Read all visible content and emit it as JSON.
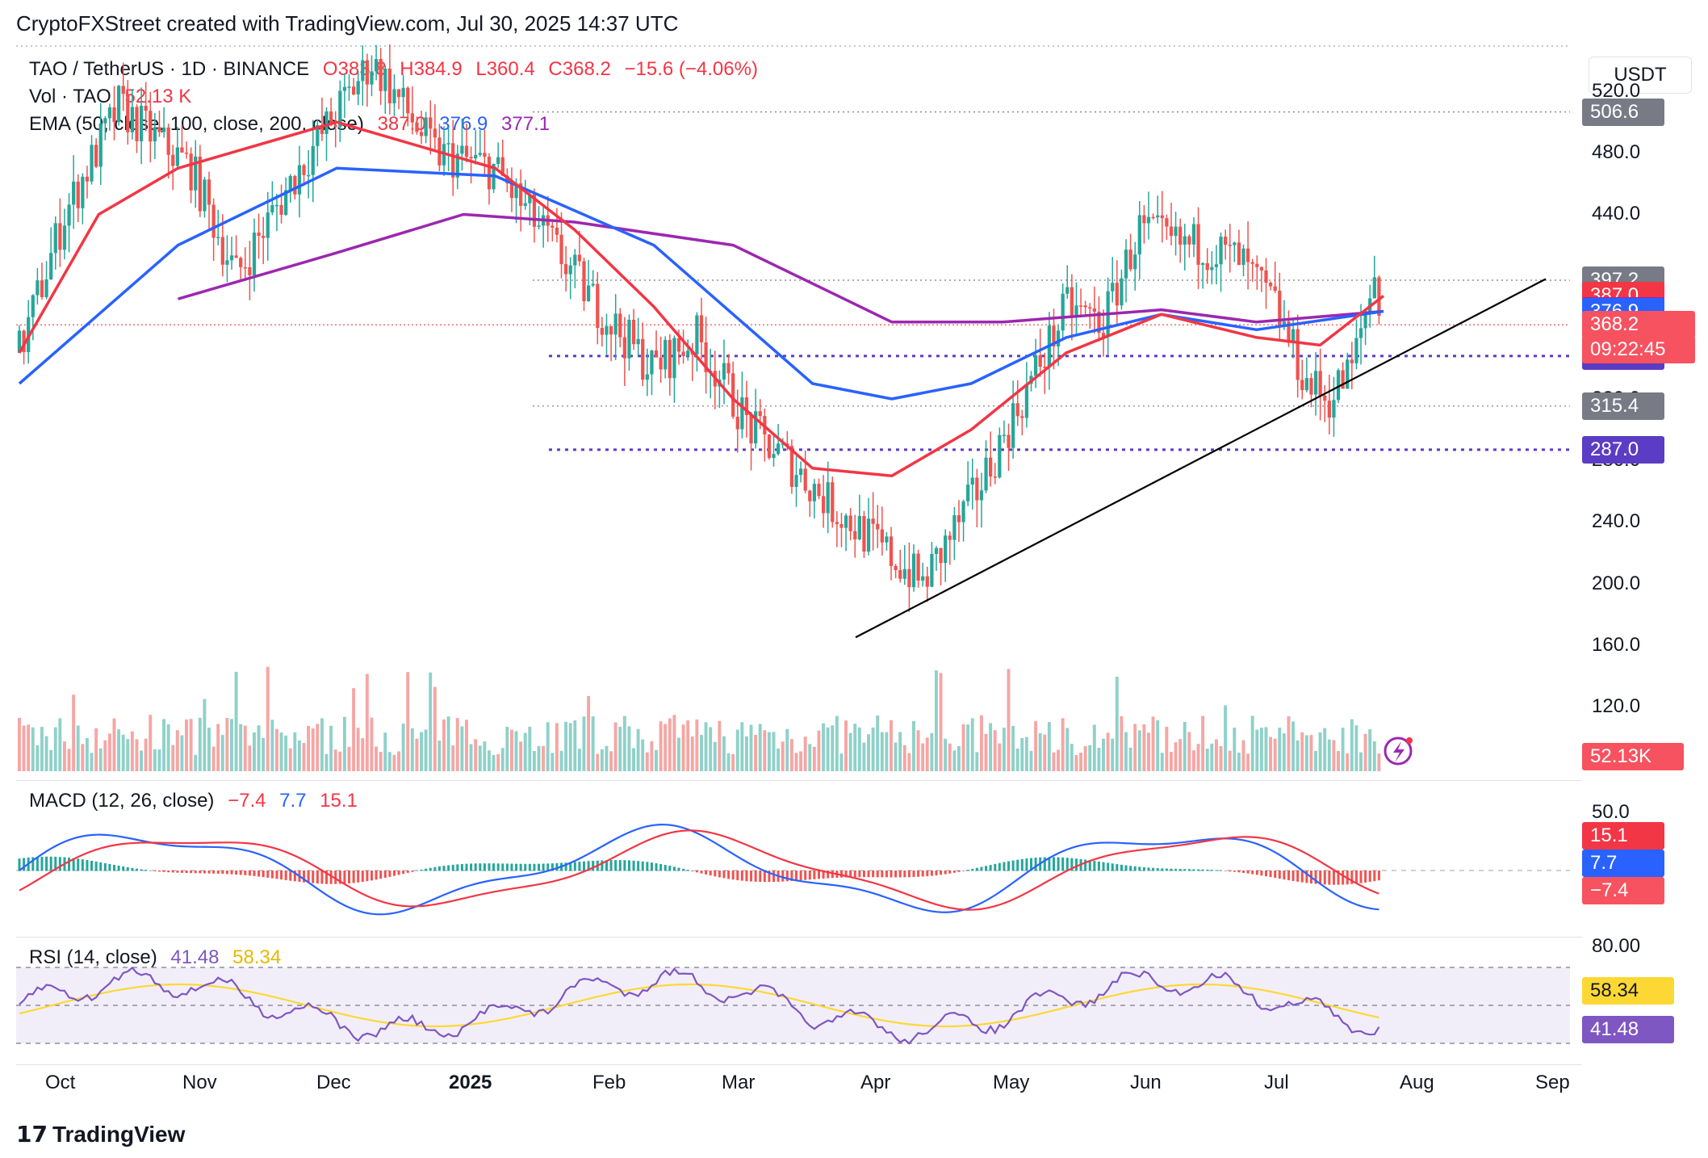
{
  "header": {
    "caption": "CryptoFXStreet created with TradingView.com, Jul 30, 2025 14:37 UTC"
  },
  "currency_button": "USDT",
  "legend": {
    "symbol": "TAO / TetherUS · 1D · BINANCE",
    "open": "O383.8",
    "high": "H384.9",
    "low": "L360.4",
    "close": "C368.2",
    "change": "−15.6 (−4.06%)",
    "vol_label": "Vol · TAO",
    "vol_value": "52.13 K",
    "ema_label": "EMA (50, close, 100, close, 200, close)",
    "ema50": "387.0",
    "ema100": "376.9",
    "ema200": "377.1",
    "macd_label": "MACD (12, 26, close)",
    "macd_hist": "−7.4",
    "macd_line": "7.7",
    "macd_signal": "15.1",
    "rsi_label": "RSI (14, close)",
    "rsi_value": "41.48",
    "rsi_ma": "58.34"
  },
  "price_axis": {
    "ticks": [
      "520.0",
      "480.0",
      "440.0",
      "400.0",
      "360.0",
      "320.0",
      "280.0",
      "240.0",
      "200.0",
      "160.0",
      "120.0"
    ],
    "badges": [
      {
        "label": "506.6",
        "color": "#787b86",
        "price": 506.6
      },
      {
        "label": "397.2",
        "color": "#787b86",
        "price": 397.2
      },
      {
        "label": "387.0",
        "color": "#f23645",
        "price": 387.0
      },
      {
        "label": "377.1",
        "color": "#9c27b0",
        "price": 377.1
      },
      {
        "label": "376.9",
        "color": "#2962ff",
        "price": 376.9
      },
      {
        "label": "368.2",
        "color": "#f7525f",
        "price": 368.2
      },
      {
        "label": "347.9",
        "color": "#5b3cc4",
        "price": 347.9
      },
      {
        "label": "315.4",
        "color": "#787b86",
        "price": 315.4
      },
      {
        "label": "287.0",
        "color": "#5b3cc4",
        "price": 287.0
      }
    ],
    "countdown": "09:22:45",
    "volume_badge": "52.13K"
  },
  "macd_axis": {
    "ticks": [
      "50.0"
    ],
    "badges": [
      {
        "label": "15.1",
        "color": "#f23645"
      },
      {
        "label": "7.7",
        "color": "#2962ff"
      },
      {
        "label": "−7.4",
        "color": "#f7525f"
      }
    ]
  },
  "rsi_axis": {
    "ticks": [
      "80.00"
    ],
    "badges": [
      {
        "label": "58.34",
        "color": "#fdd835",
        "text_color": "#131722"
      },
      {
        "label": "41.48",
        "color": "#7e57c2",
        "text_color": "#ffffff"
      }
    ]
  },
  "time_axis": [
    "Oct",
    "Nov",
    "Dec",
    "2025",
    "Feb",
    "Mar",
    "Apr",
    "May",
    "Jun",
    "Jul",
    "Aug",
    "Sep"
  ],
  "footer": {
    "brand": "TradingView"
  },
  "colors": {
    "up": "#26a69a",
    "down": "#ef5350",
    "ema50": "#f23645",
    "ema100": "#2962ff",
    "ema200": "#9c27b0",
    "rsi": "#7e57c2",
    "rsi_ma": "#fdd835",
    "level": "#5b3cc4"
  },
  "chart_data": {
    "type": "line",
    "ylim": [
      120,
      540
    ],
    "series": [
      {
        "name": "EMA 50",
        "values": [
          [
            0,
            350
          ],
          [
            0.05,
            440
          ],
          [
            0.1,
            470
          ],
          [
            0.2,
            500
          ],
          [
            0.3,
            470
          ],
          [
            0.35,
            430
          ],
          [
            0.4,
            380
          ],
          [
            0.45,
            320
          ],
          [
            0.5,
            275
          ],
          [
            0.55,
            270
          ],
          [
            0.6,
            300
          ],
          [
            0.66,
            350
          ],
          [
            0.72,
            375
          ],
          [
            0.78,
            360
          ],
          [
            0.82,
            355
          ],
          [
            0.86,
            387
          ]
        ]
      },
      {
        "name": "EMA 100",
        "values": [
          [
            0,
            330
          ],
          [
            0.1,
            420
          ],
          [
            0.2,
            470
          ],
          [
            0.3,
            465
          ],
          [
            0.4,
            420
          ],
          [
            0.5,
            330
          ],
          [
            0.55,
            320
          ],
          [
            0.6,
            330
          ],
          [
            0.66,
            360
          ],
          [
            0.72,
            375
          ],
          [
            0.78,
            365
          ],
          [
            0.86,
            377
          ]
        ]
      },
      {
        "name": "EMA 200",
        "values": [
          [
            0.1,
            385
          ],
          [
            0.2,
            415
          ],
          [
            0.28,
            440
          ],
          [
            0.35,
            435
          ],
          [
            0.45,
            420
          ],
          [
            0.52,
            385
          ],
          [
            0.55,
            370
          ],
          [
            0.62,
            370
          ],
          [
            0.72,
            378
          ],
          [
            0.78,
            370
          ],
          [
            0.86,
            377
          ]
        ]
      }
    ],
    "support_levels": [
      347.9,
      287.0,
      315.4,
      397.2,
      506.6
    ],
    "trendline": [
      [
        0.52,
        165
      ],
      [
        0.95,
        398
      ]
    ]
  }
}
